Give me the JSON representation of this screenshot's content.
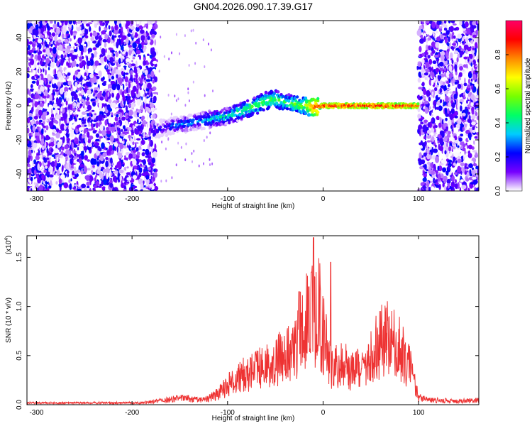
{
  "title": "GN04.2026.090.17.39.G17",
  "chart_data": [
    {
      "type": "heatmap",
      "title": "GN04.2026.090.17.39.G17",
      "xlabel": "Height of straight line (km)",
      "ylabel": "Frequency (Hz)",
      "xlim": [
        -310,
        163
      ],
      "ylim": [
        -50,
        50
      ],
      "xticks": [
        -300,
        -200,
        -100,
        0,
        100
      ],
      "yticks": [
        -40,
        -20,
        0,
        20,
        40
      ],
      "colorbar": {
        "label": "Normalized spectral amplitude",
        "range": [
          0,
          1
        ],
        "ticks": [
          "0.0",
          "0.2",
          "0.4",
          "0.6",
          "0.8"
        ],
        "tick_values": [
          0,
          0.2,
          0.4,
          0.6,
          0.8
        ],
        "colors": [
          "#ffffff",
          "#7700ff",
          "#0000ff",
          "#00ccff",
          "#00ff66",
          "#77ff00",
          "#ffff00",
          "#ff8800",
          "#ff0000",
          "#ff0066"
        ]
      },
      "noise_regions_km": [
        [
          -310,
          -175
        ],
        [
          100,
          163
        ]
      ],
      "signal_ridge": {
        "km": [
          -175,
          -160,
          -140,
          -120,
          -100,
          -85,
          -70,
          -60,
          -50,
          -40,
          -30,
          -20,
          -10,
          0,
          20,
          50,
          80,
          100
        ],
        "freq_hz": [
          -14,
          -12,
          -10,
          -8,
          -6,
          -3,
          0,
          3,
          4,
          2,
          1,
          0,
          -1,
          0,
          0,
          0,
          0,
          0
        ],
        "amplitude": [
          0.2,
          0.25,
          0.3,
          0.35,
          0.4,
          0.45,
          0.5,
          0.5,
          0.5,
          0.45,
          0.5,
          0.55,
          0.8,
          0.9,
          0.9,
          0.9,
          0.9,
          0.85
        ]
      }
    },
    {
      "type": "line",
      "xlabel": "Height of straight line (km)",
      "ylabel": "SNR (10 * v/v)",
      "yscale_label": "(x10",
      "yscale_exp": "4",
      "xlim": [
        -310,
        163
      ],
      "ylim": [
        0,
        1.72
      ],
      "xticks": [
        -300,
        -200,
        -100,
        0,
        100
      ],
      "yticks": [
        "0.0",
        "0.5",
        "1.0",
        "1.5"
      ],
      "ytick_values": [
        0,
        0.5,
        1.0,
        1.5
      ],
      "color": "#ee3333",
      "series": [
        {
          "name": "SNR",
          "x": [
            -310,
            -280,
            -250,
            -220,
            -200,
            -180,
            -160,
            -150,
            -140,
            -130,
            -120,
            -110,
            -100,
            -90,
            -80,
            -70,
            -60,
            -50,
            -40,
            -30,
            -25,
            -20,
            -15,
            -12,
            -10,
            -8,
            -5,
            0,
            5,
            10,
            20,
            30,
            40,
            50,
            60,
            65,
            70,
            80,
            90,
            95,
            100,
            110,
            120,
            140,
            163
          ],
          "y": [
            0.02,
            0.02,
            0.02,
            0.02,
            0.02,
            0.03,
            0.06,
            0.07,
            0.07,
            0.05,
            0.07,
            0.12,
            0.22,
            0.3,
            0.35,
            0.4,
            0.45,
            0.5,
            0.55,
            0.65,
            0.8,
            0.9,
            0.95,
            1.0,
            1.3,
            0.9,
            1.1,
            0.8,
            0.55,
            0.4,
            0.45,
            0.4,
            0.4,
            0.55,
            0.75,
            0.8,
            0.72,
            0.62,
            0.45,
            0.25,
            0.08,
            0.05,
            0.05,
            0.04,
            0.05
          ]
        }
      ],
      "peaks": {
        "x": [
          -25,
          -15,
          -12,
          -10,
          8
        ],
        "y": [
          1.15,
          1.2,
          1.35,
          1.7,
          1.45
        ]
      }
    }
  ]
}
